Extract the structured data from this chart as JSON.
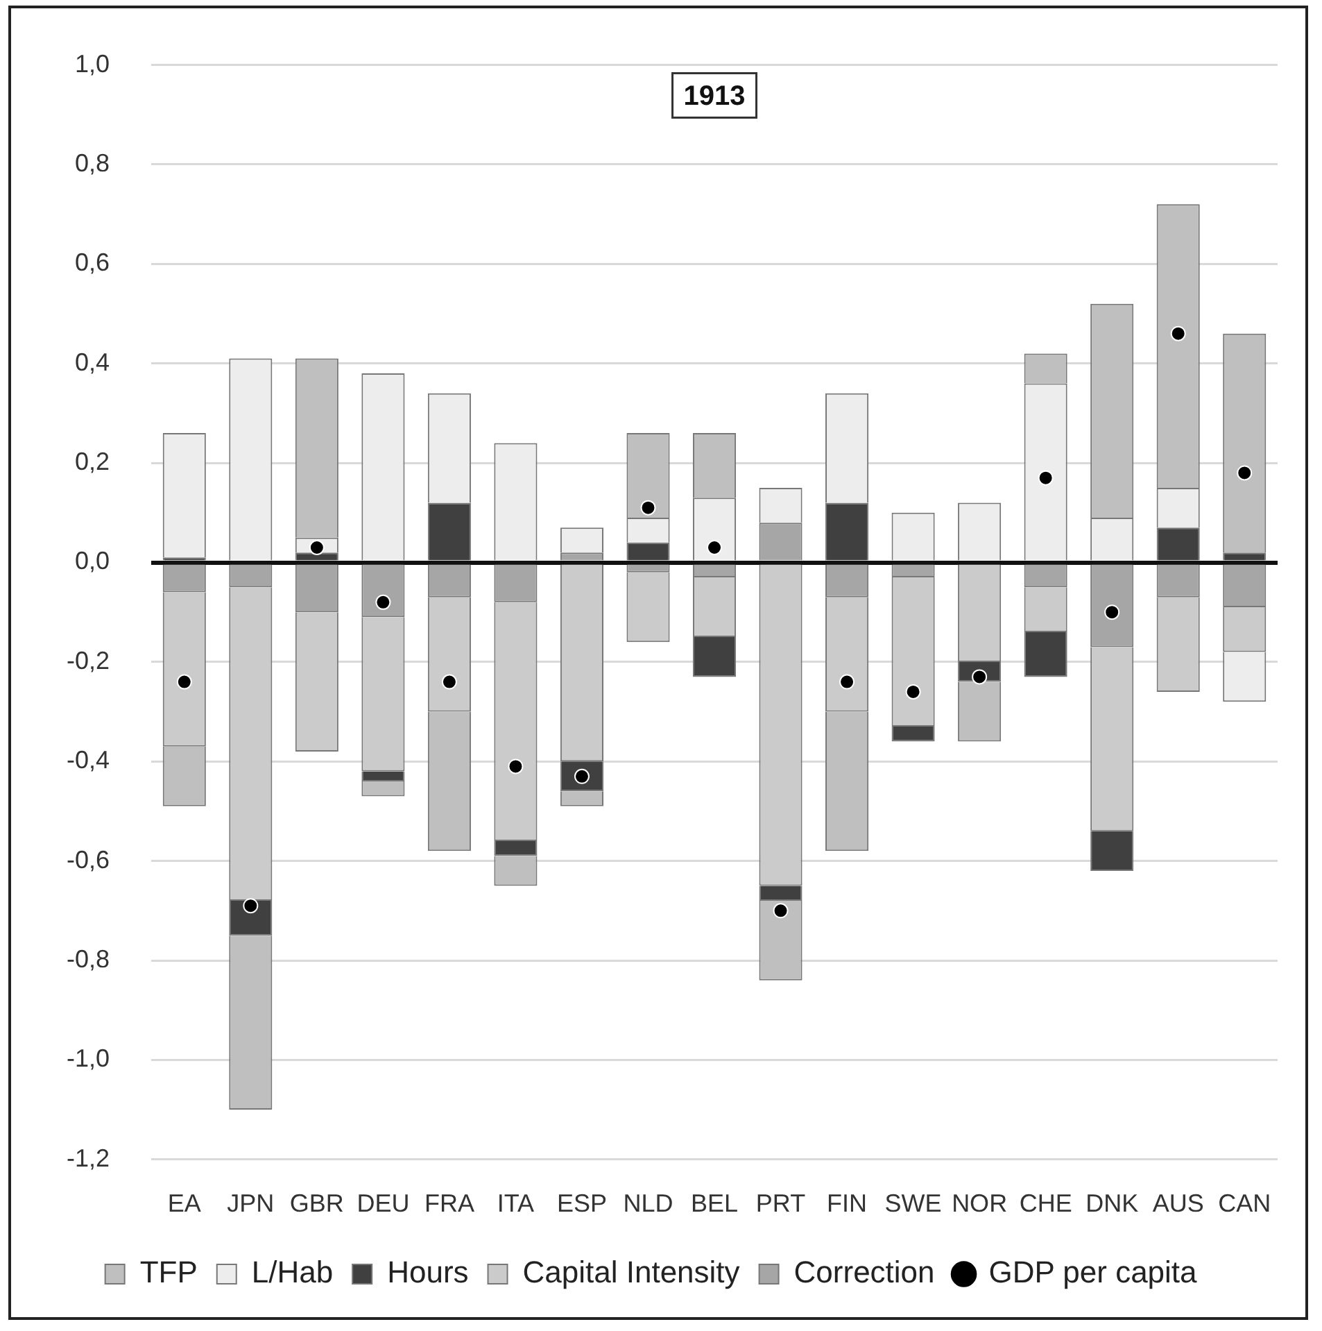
{
  "chart_data": {
    "type": "bar",
    "title": "1913",
    "stacked": true,
    "grid": "y",
    "legend": "bottom",
    "marker": "circle",
    "categories": [
      "EA",
      "JPN",
      "GBR",
      "DEU",
      "FRA",
      "ITA",
      "ESP",
      "NLD",
      "BEL",
      "PRT",
      "FIN",
      "SWE",
      "NOR",
      "CHE",
      "DNK",
      "AUS",
      "CAN"
    ],
    "ylim": [
      -1.2,
      1.0
    ],
    "yticks": [
      {
        "value": -1.2,
        "label": "-1,2"
      },
      {
        "value": -1.0,
        "label": "-1,0"
      },
      {
        "value": -0.8,
        "label": "-0,8"
      },
      {
        "value": -0.6,
        "label": "-0,6"
      },
      {
        "value": -0.4,
        "label": "-0,4"
      },
      {
        "value": -0.2,
        "label": "-0,2"
      },
      {
        "value": 0,
        "label": "0,0"
      },
      {
        "value": 0.2,
        "label": "0,2"
      },
      {
        "value": 0.4,
        "label": "0,4"
      },
      {
        "value": 0.6,
        "label": "0,6"
      },
      {
        "value": 0.8,
        "label": "0,8"
      },
      {
        "value": 1.0,
        "label": "1,0"
      }
    ],
    "series": [
      {
        "name": "Correction",
        "color": "#a6a6a6",
        "values": [
          -0.06,
          -0.05,
          -0.1,
          -0.11,
          -0.07,
          -0.08,
          0.02,
          -0.02,
          -0.03,
          0.08,
          -0.07,
          -0.03,
          null,
          -0.05,
          -0.17,
          -0.07,
          -0.09
        ]
      },
      {
        "name": "Capital Intensity",
        "color": "#cbcbcb",
        "values": [
          -0.31,
          -0.63,
          -0.28,
          -0.31,
          -0.23,
          -0.48,
          -0.4,
          -0.14,
          -0.12,
          -0.65,
          -0.23,
          -0.3,
          -0.2,
          -0.09,
          -0.37,
          -0.19,
          -0.09
        ]
      },
      {
        "name": "Hours",
        "color": "#404040",
        "values": [
          0.01,
          -0.07,
          0.02,
          -0.02,
          0.12,
          -0.03,
          -0.06,
          0.04,
          -0.08,
          -0.03,
          0.12,
          -0.03,
          -0.04,
          -0.09,
          -0.08,
          0.07,
          0.02
        ]
      },
      {
        "name": "L/Hab",
        "color": "#ededed",
        "values": [
          0.25,
          0.41,
          0.03,
          0.38,
          0.22,
          0.24,
          0.05,
          0.05,
          0.13,
          0.07,
          0.22,
          0.1,
          0.12,
          0.36,
          0.09,
          0.08,
          -0.1
        ]
      },
      {
        "name": "TFP",
        "color": "#bfbfbf",
        "values": [
          -0.12,
          -0.35,
          0.36,
          -0.03,
          -0.28,
          -0.06,
          -0.03,
          0.17,
          0.13,
          -0.16,
          -0.28,
          null,
          -0.12,
          0.06,
          0.43,
          0.57,
          0.44
        ]
      },
      {
        "name": "GDP per capita",
        "type": "scatter",
        "color": "#000000",
        "values": [
          -0.24,
          -0.69,
          0.03,
          -0.08,
          -0.24,
          -0.41,
          -0.43,
          0.11,
          0.03,
          -0.7,
          -0.24,
          -0.26,
          -0.23,
          0.17,
          -0.1,
          0.46,
          0.18
        ]
      }
    ]
  }
}
